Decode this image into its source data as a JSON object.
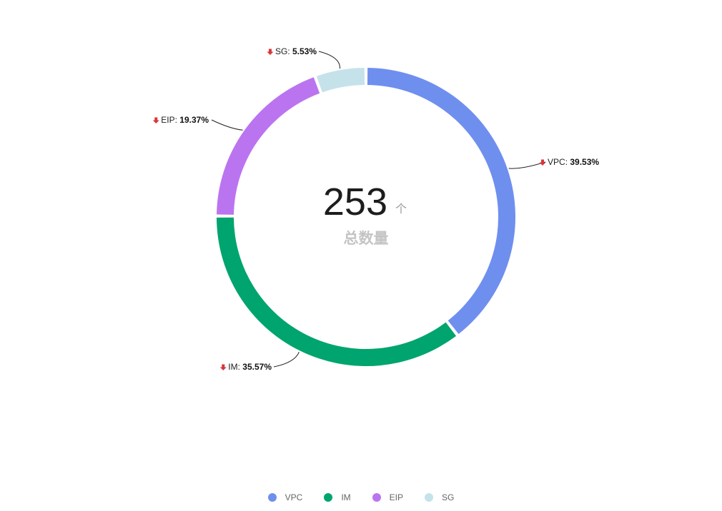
{
  "chart_data": {
    "type": "pie",
    "variant": "donut",
    "title": "",
    "total": {
      "value": "253",
      "unit": "个",
      "caption": "总数量"
    },
    "slices": [
      {
        "name": "VPC",
        "percent": 39.53,
        "percent_label": "39.53%",
        "color": "#6f8fef",
        "trend": "down"
      },
      {
        "name": "IM",
        "percent": 35.57,
        "percent_label": "35.57%",
        "color": "#00a46e",
        "trend": "down"
      },
      {
        "name": "EIP",
        "percent": 19.37,
        "percent_label": "19.37%",
        "color": "#bb74f0",
        "trend": "down"
      },
      {
        "name": "SG",
        "percent": 5.53,
        "percent_label": "5.53%",
        "color": "#c5e2ea",
        "trend": "down"
      }
    ],
    "start_angle": "12 o'clock",
    "direction": "clockwise",
    "trend_arrow_color": "#d8363a",
    "legend": {
      "position": "bottom-center",
      "items": [
        "VPC",
        "IM",
        "EIP",
        "SG"
      ]
    }
  }
}
